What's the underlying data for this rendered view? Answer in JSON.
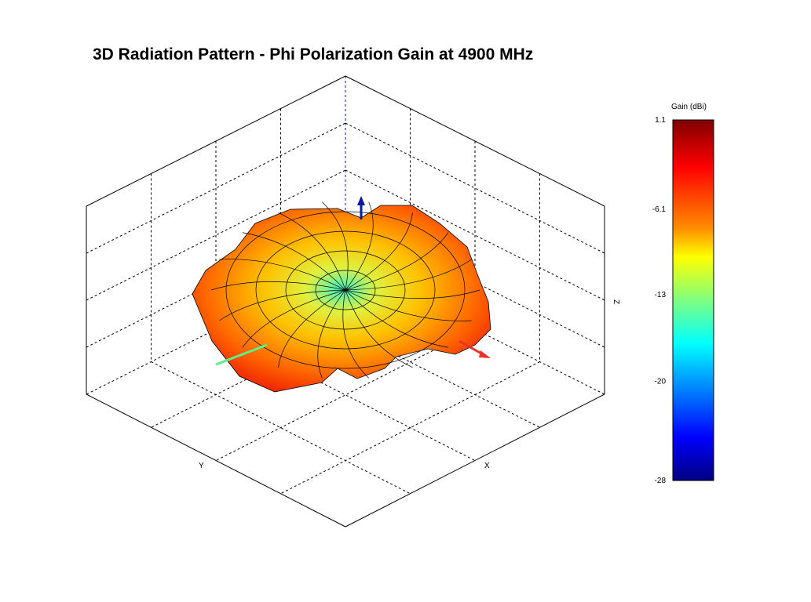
{
  "chart_data": {
    "type": "surface",
    "title": "3D Radiation Pattern - Phi Polarization Gain at 4900 MHz",
    "xlabel": "X",
    "ylabel": "Y",
    "zlabel": "Z",
    "grid": true,
    "colorbar": {
      "label": "Gain (dBi)",
      "ticks": [
        "1.1",
        "-6.1",
        "-13",
        "-20",
        "-28"
      ],
      "range": [
        -28,
        1.1
      ],
      "colormap": "jet",
      "placement": "right"
    },
    "axis_arrows": {
      "x": "#e8322a",
      "y": "#5ef08a",
      "z": "#0a1a9a"
    }
  }
}
